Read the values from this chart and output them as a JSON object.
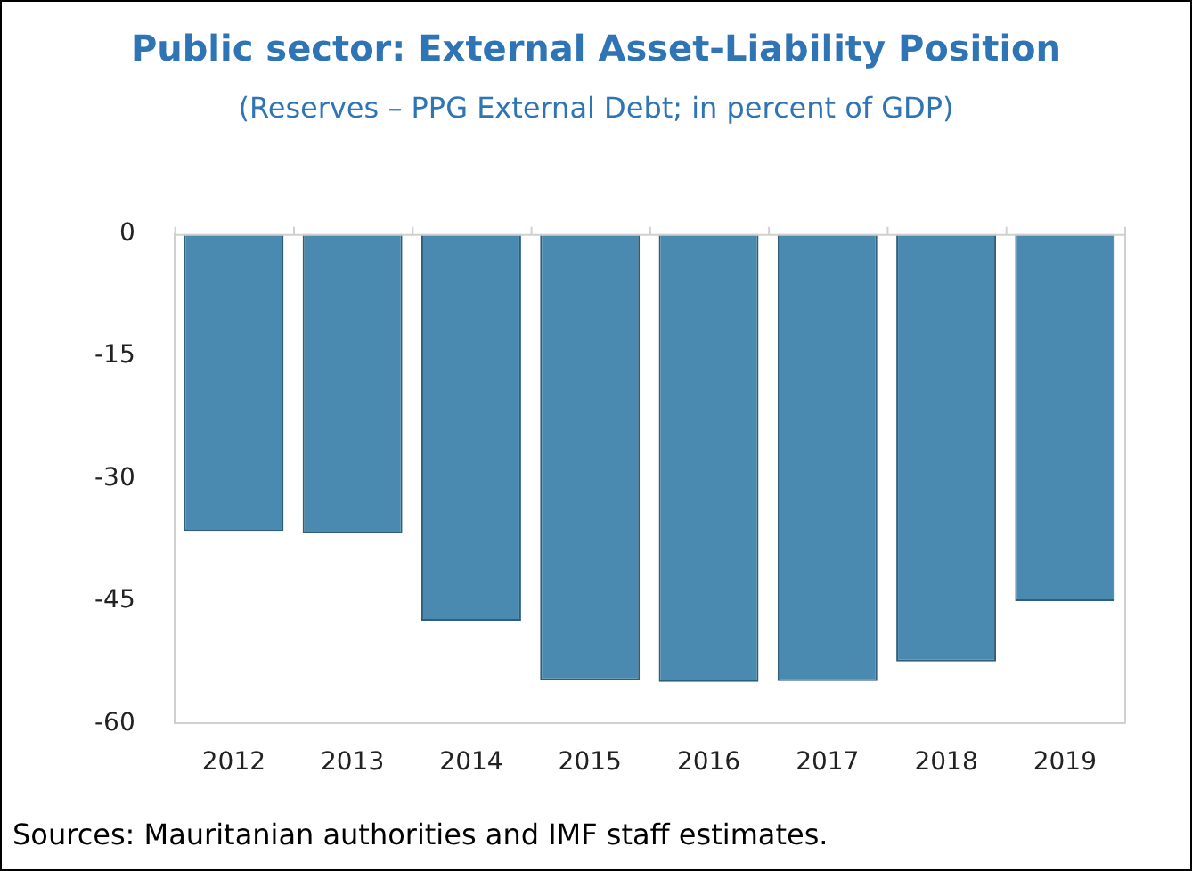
{
  "chart_data": {
    "type": "bar",
    "title": "Public sector: External Asset-Liability Position",
    "subtitle": "(Reserves – PPG External Debt; in percent of GDP)",
    "categories": [
      "2012",
      "2013",
      "2014",
      "2015",
      "2016",
      "2017",
      "2018",
      "2019"
    ],
    "values": [
      -36.4,
      -36.7,
      -47.4,
      -54.7,
      -54.9,
      -54.8,
      -52.4,
      -45.0
    ],
    "color": "#4a8ab0",
    "ylim": [
      -60,
      0
    ],
    "yticks": [
      -60,
      -45,
      -30,
      -15,
      0
    ],
    "grid": false,
    "legend": false,
    "annotations": [
      "Sources: Mauritanian authorities and IMF staff estimates."
    ]
  }
}
